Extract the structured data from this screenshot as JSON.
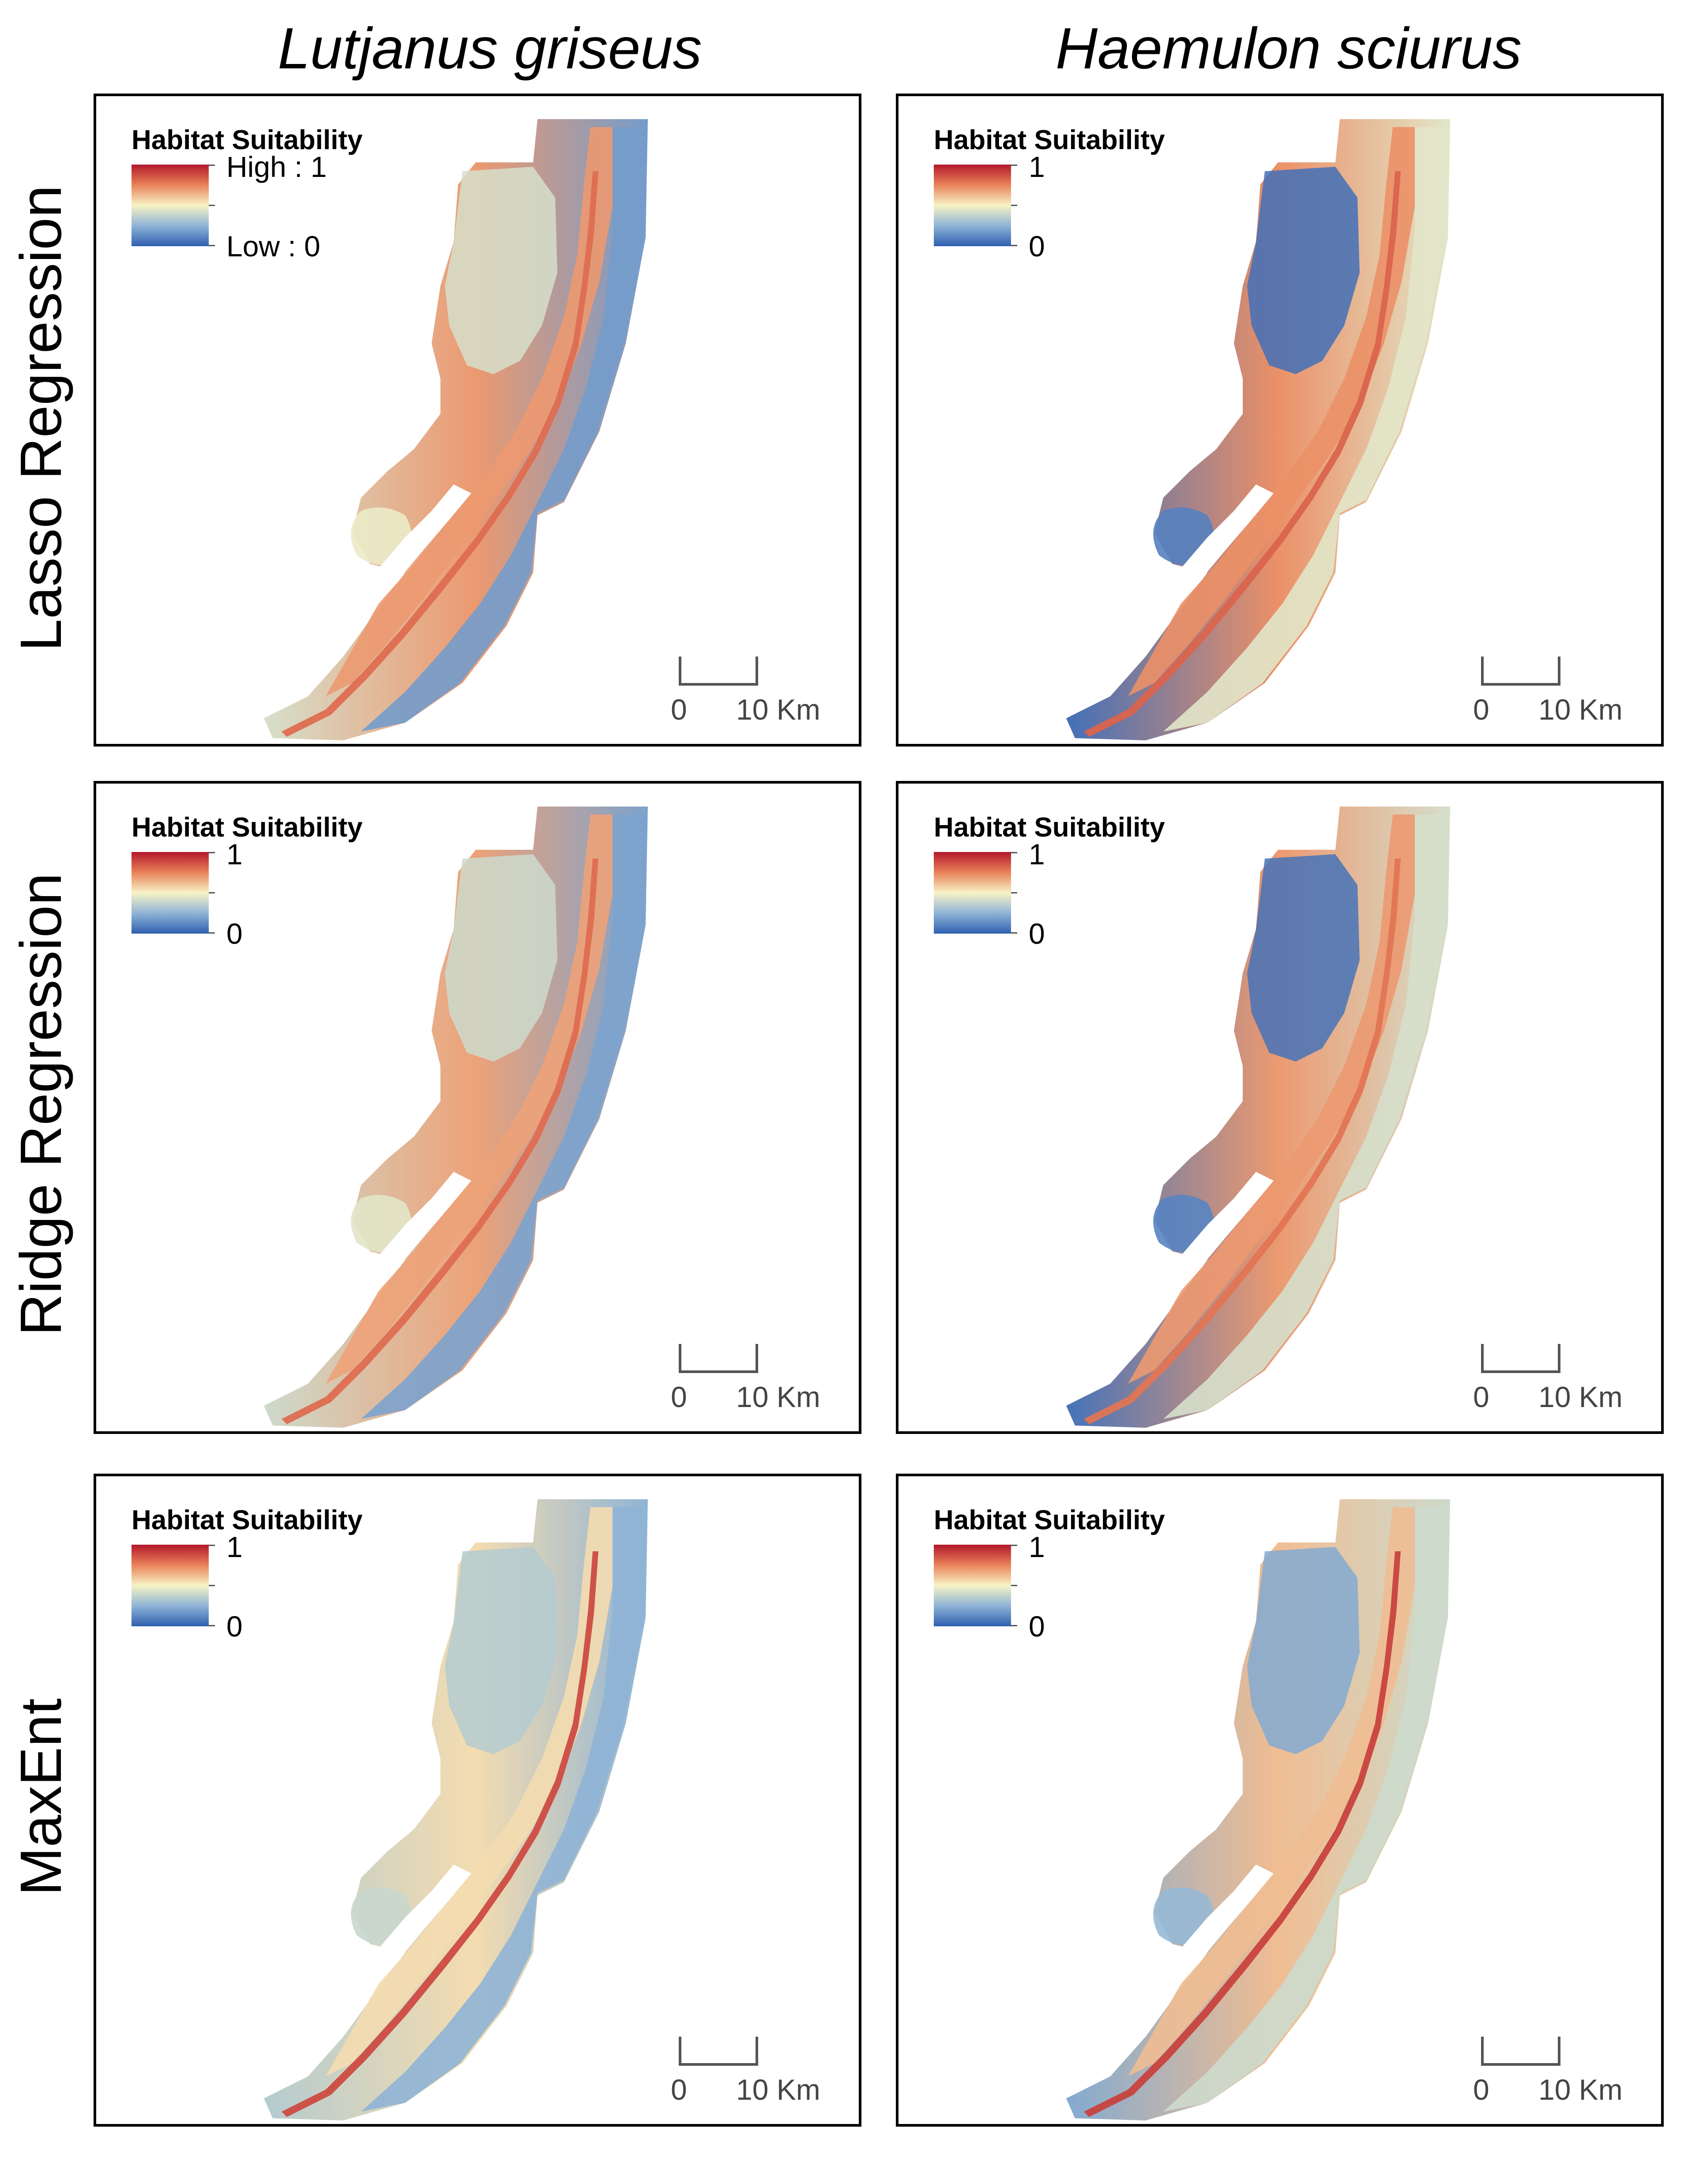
{
  "column_titles": [
    "Lutjanus griseus",
    "Haemulon sciurus"
  ],
  "row_labels": [
    "Lasso Regression",
    "Ridge Regression",
    "MaxEnt"
  ],
  "legend": {
    "title": "Habitat Suitability",
    "first_high": "High : 1",
    "first_low": "Low : 0",
    "high": "1",
    "low": "0"
  },
  "scale_bar": {
    "zero": "0",
    "ten": "10 Km"
  },
  "color_ramp": [
    "#b2182b",
    "#e9825a",
    "#f7f3c6",
    "#8fb4d6",
    "#2f5fb0"
  ],
  "panels": [
    {
      "species": "Lutjanus griseus",
      "model": "Lasso Regression",
      "bay_level": 0.42,
      "shelf_level": 0.7,
      "ocean_level": 0.18,
      "keys_level": 0.8
    },
    {
      "species": "Haemulon sciurus",
      "model": "Lasso Regression",
      "bay_level": 0.05,
      "shelf_level": 0.72,
      "ocean_level": 0.45,
      "keys_level": 0.82
    },
    {
      "species": "Lutjanus griseus",
      "model": "Ridge Regression",
      "bay_level": 0.4,
      "shelf_level": 0.68,
      "ocean_level": 0.2,
      "keys_level": 0.8
    },
    {
      "species": "Haemulon sciurus",
      "model": "Ridge Regression",
      "bay_level": 0.06,
      "shelf_level": 0.7,
      "ocean_level": 0.42,
      "keys_level": 0.78
    },
    {
      "species": "Lutjanus griseus",
      "model": "MaxEnt",
      "bay_level": 0.34,
      "shelf_level": 0.55,
      "ocean_level": 0.25,
      "keys_level": 0.88
    },
    {
      "species": "Haemulon sciurus",
      "model": "MaxEnt",
      "bay_level": 0.22,
      "shelf_level": 0.62,
      "ocean_level": 0.4,
      "keys_level": 0.9
    }
  ]
}
